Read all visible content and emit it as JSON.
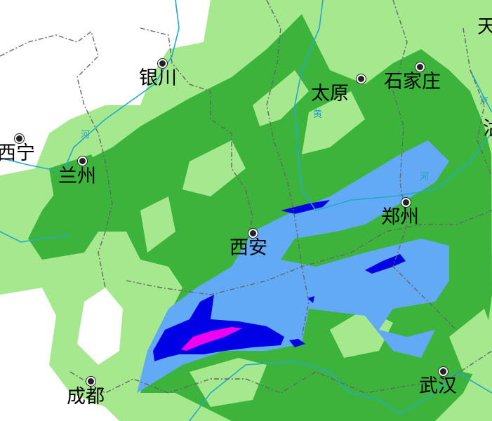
{
  "map": {
    "colors": {
      "no_rain": "#ffffff",
      "light": "#a6e88e",
      "moderate": "#3cb43c",
      "heavy": "#62aaf5",
      "rainstorm": "#0000e6",
      "heavy_rainstorm": "#f000f0",
      "river": "#22aacc",
      "border": "#666666"
    },
    "cities": [
      {
        "name": "银川"
      },
      {
        "name": "太原"
      },
      {
        "name": "石家庄"
      },
      {
        "name": "天"
      },
      {
        "name": "西宁"
      },
      {
        "name": "兰州"
      },
      {
        "name": "郑州"
      },
      {
        "name": "西安"
      },
      {
        "name": "成都"
      },
      {
        "name": "武汉"
      }
    ],
    "river_labels": [
      "河",
      "黄",
      "河",
      "京",
      "沽"
    ]
  }
}
